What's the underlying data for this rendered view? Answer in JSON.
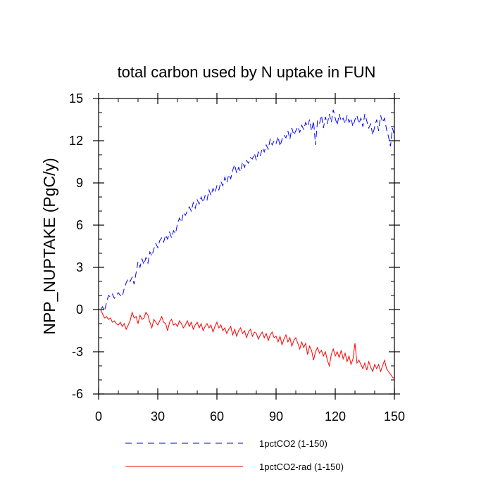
{
  "chart_data": {
    "type": "line",
    "title": "total carbon used by N uptake in FUN",
    "xlabel": "",
    "ylabel": "NPP_NUPTAKE  (PgC/y)",
    "xlim": [
      0,
      150
    ],
    "ylim": [
      -6,
      15
    ],
    "x_ticks": [
      0,
      30,
      60,
      90,
      120,
      150
    ],
    "x_tick_labels": [
      "0",
      "30",
      "60",
      "90",
      "120",
      "150"
    ],
    "y_ticks": [
      -6,
      -3,
      0,
      3,
      6,
      9,
      12,
      15
    ],
    "y_tick_labels": [
      "-6",
      "-3",
      "0",
      "3",
      "6",
      "9",
      "12",
      "15"
    ],
    "grid": false,
    "legend_position": "bottom",
    "x": [
      1,
      2,
      3,
      4,
      5,
      6,
      7,
      8,
      9,
      10,
      11,
      12,
      13,
      14,
      15,
      16,
      17,
      18,
      19,
      20,
      21,
      22,
      23,
      24,
      25,
      26,
      27,
      28,
      29,
      30,
      31,
      32,
      33,
      34,
      35,
      36,
      37,
      38,
      39,
      40,
      41,
      42,
      43,
      44,
      45,
      46,
      47,
      48,
      49,
      50,
      51,
      52,
      53,
      54,
      55,
      56,
      57,
      58,
      59,
      60,
      61,
      62,
      63,
      64,
      65,
      66,
      67,
      68,
      69,
      70,
      71,
      72,
      73,
      74,
      75,
      76,
      77,
      78,
      79,
      80,
      81,
      82,
      83,
      84,
      85,
      86,
      87,
      88,
      89,
      90,
      91,
      92,
      93,
      94,
      95,
      96,
      97,
      98,
      99,
      100,
      101,
      102,
      103,
      104,
      105,
      106,
      107,
      108,
      109,
      110,
      111,
      112,
      113,
      114,
      115,
      116,
      117,
      118,
      119,
      120,
      121,
      122,
      123,
      124,
      125,
      126,
      127,
      128,
      129,
      130,
      131,
      132,
      133,
      134,
      135,
      136,
      137,
      138,
      139,
      140,
      141,
      142,
      143,
      144,
      145,
      146,
      147,
      148,
      149,
      150
    ],
    "series": [
      {
        "name": "1pctCO2 (1-150)",
        "color": "#0000ff",
        "dash": "dashed",
        "values": [
          0.0,
          0.2,
          -0.1,
          0.5,
          1.0,
          0.9,
          1.1,
          0.8,
          1.0,
          1.2,
          1.0,
          0.9,
          1.5,
          1.9,
          2.2,
          2.0,
          2.3,
          1.8,
          2.6,
          3.4,
          3.0,
          3.6,
          3.2,
          3.7,
          3.3,
          4.1,
          3.8,
          4.3,
          4.7,
          4.4,
          4.9,
          5.1,
          4.8,
          5.3,
          5.0,
          5.5,
          5.1,
          5.6,
          5.4,
          6.1,
          6.5,
          6.2,
          6.9,
          6.7,
          7.0,
          7.3,
          7.0,
          7.6,
          7.2,
          7.8,
          7.5,
          8.0,
          7.6,
          8.1,
          7.8,
          8.5,
          8.1,
          8.6,
          8.3,
          8.8,
          8.5,
          9.1,
          8.8,
          9.4,
          9.0,
          9.6,
          9.3,
          9.9,
          10.3,
          9.7,
          10.1,
          9.8,
          10.5,
          10.1,
          10.6,
          10.4,
          10.8,
          10.7,
          11.1,
          10.6,
          11.2,
          10.9,
          11.5,
          11.2,
          11.7,
          11.4,
          12.1,
          11.7,
          12.0,
          11.8,
          12.3,
          11.6,
          12.1,
          12.4,
          12.2,
          12.7,
          12.1,
          12.9,
          12.4,
          12.7,
          13.0,
          12.6,
          13.1,
          12.8,
          13.3,
          13.0,
          13.5,
          12.7,
          13.4,
          11.7,
          13.4,
          13.2,
          13.8,
          12.9,
          13.7,
          13.2,
          13.9,
          13.3,
          14.2,
          13.6,
          13.1,
          13.9,
          13.4,
          13.6,
          13.2,
          13.8,
          13.3,
          13.6,
          13.0,
          13.5,
          13.8,
          13.2,
          13.6,
          13.0,
          13.9,
          13.4,
          12.9,
          13.2,
          12.4,
          13.0,
          13.5,
          12.7,
          13.8,
          13.3,
          13.6,
          12.8,
          12.3,
          11.6,
          12.9,
          12.4
        ]
      },
      {
        "name": "1pctCO2-rad (1-150)",
        "color": "#ff0000",
        "dash": "solid",
        "values": [
          0.0,
          -0.3,
          -0.6,
          -0.5,
          -0.7,
          -0.6,
          -0.9,
          -0.8,
          -1.0,
          -1.1,
          -0.9,
          -1.2,
          -1.0,
          -1.4,
          -1.1,
          -0.8,
          -0.2,
          -0.6,
          -0.5,
          -1.0,
          -0.4,
          -0.7,
          -0.6,
          -0.2,
          -0.4,
          -0.9,
          -1.3,
          -0.7,
          -0.9,
          -1.1,
          -0.8,
          -0.5,
          -0.9,
          -1.0,
          -1.5,
          -0.9,
          -0.7,
          -1.1,
          -1.0,
          -1.2,
          -0.8,
          -1.0,
          -1.3,
          -1.1,
          -0.8,
          -1.2,
          -0.9,
          -1.4,
          -1.1,
          -0.9,
          -1.3,
          -1.0,
          -1.5,
          -1.2,
          -1.0,
          -1.3,
          -1.1,
          -1.6,
          -1.2,
          -0.9,
          -1.3,
          -1.1,
          -1.5,
          -1.3,
          -1.7,
          -1.4,
          -1.2,
          -1.8,
          -1.4,
          -1.9,
          -1.5,
          -1.3,
          -1.7,
          -1.5,
          -2.0,
          -1.6,
          -1.4,
          -1.9,
          -1.6,
          -1.7,
          -2.1,
          -1.8,
          -1.6,
          -2.0,
          -1.7,
          -2.2,
          -1.8,
          -1.6,
          -2.0,
          -1.9,
          -2.3,
          -1.9,
          -2.5,
          -2.1,
          -1.8,
          -2.3,
          -2.0,
          -2.6,
          -2.2,
          -2.0,
          -2.4,
          -2.8,
          -2.3,
          -2.7,
          -2.4,
          -3.2,
          -2.6,
          -2.9,
          -3.6,
          -3.0,
          -2.7,
          -3.1,
          -2.9,
          -3.3,
          -3.0,
          -3.6,
          -4.0,
          -3.2,
          -2.8,
          -3.3,
          -3.0,
          -3.4,
          -2.9,
          -3.5,
          -3.1,
          -3.7,
          -3.3,
          -3.9,
          -3.5,
          -2.4,
          -3.8,
          -3.6,
          -3.9,
          -4.2,
          -3.8,
          -4.3,
          -3.7,
          -4.1,
          -4.4,
          -3.9,
          -4.2,
          -3.9,
          -4.4,
          -4.0,
          -3.6,
          -4.2,
          -4.4,
          -4.6,
          -4.8,
          -4.9
        ]
      }
    ]
  }
}
